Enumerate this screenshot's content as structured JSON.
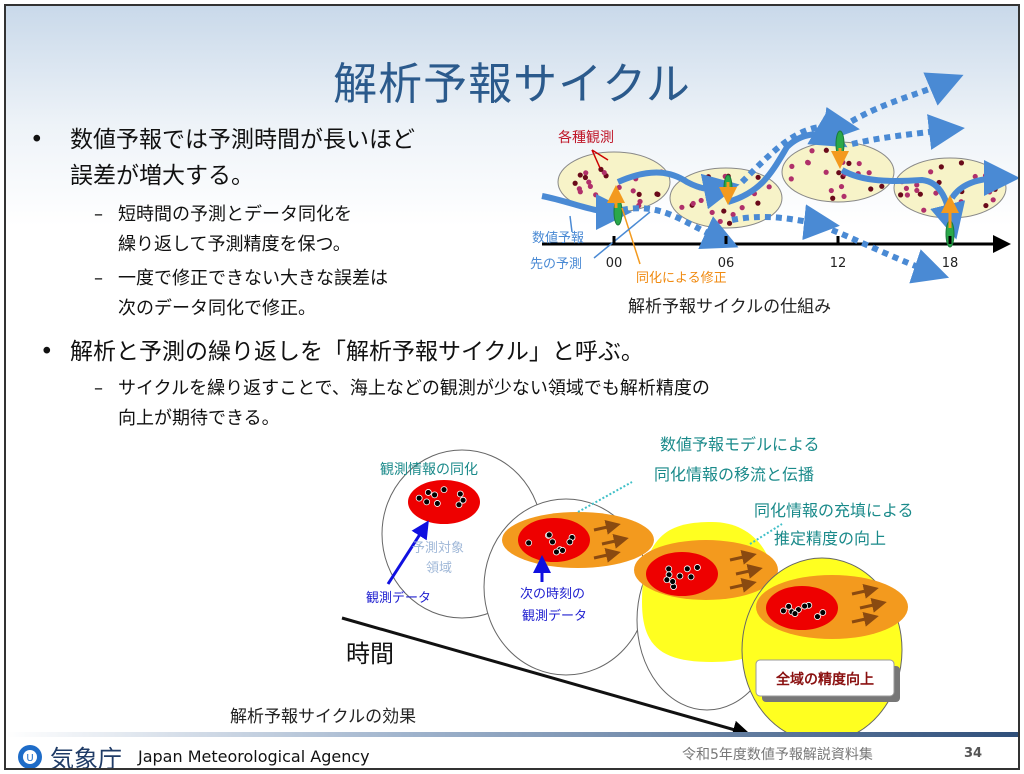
{
  "title": "解析予報サイクル",
  "bullets": [
    {
      "text": "数値予報では予測時間が長いほど",
      "text2": "誤差が増大する。",
      "subs": [
        {
          "line1": "短時間の予測とデータ同化を",
          "line2": "繰り返して予測精度を保つ。"
        },
        {
          "line1": "一度で修正できない大きな誤差は",
          "line2": "次のデータ同化で修正。"
        }
      ]
    },
    {
      "text": "解析と予測の繰り返しを「解析予報サイクル」と呼ぶ。",
      "subs": [
        {
          "line1": "サイクルを繰り返すことで、海上などの観測が少ない領域でも解析精度の",
          "line2": "向上が期待できる。"
        }
      ]
    }
  ],
  "cycle_diagram": {
    "caption": "解析予報サイクルの仕組み",
    "labels": {
      "observations": "各種観測",
      "forecast": "数値予報",
      "prior_forecast": "先の予測",
      "correction": "同化による修正"
    },
    "ticks": [
      "00",
      "06",
      "12",
      "18"
    ],
    "colors": {
      "forecast": "#4a8ad4",
      "observation": "#8b1a3a",
      "correction": "#f39a1e",
      "ellipse": "#f7f3c8"
    }
  },
  "effect_diagram": {
    "caption": "解析予報サイクルの効果",
    "time_label": "時間",
    "assimilation": "観測情報の同化",
    "target_area_1": "予測対象",
    "target_area_2": "領域",
    "obs_data": "観測データ",
    "next_obs_1": "次の時刻の",
    "next_obs_2": "観測データ",
    "advection_1": "数値予報モデルによる",
    "advection_2": "同化情報の移流と伝播",
    "filling_1": "同化情報の充填による",
    "filling_2": "推定精度の向上",
    "result": "全域の精度向上"
  },
  "footer": {
    "agency_jp": "気象庁",
    "agency_en": "Japan Meteorological Agency",
    "document": "令和5年度数値予報解説資料集",
    "page": "34"
  }
}
